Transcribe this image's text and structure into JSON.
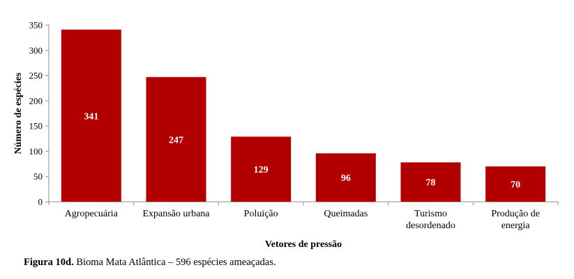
{
  "chart_data": {
    "type": "bar",
    "categories": [
      [
        "Agropecuária"
      ],
      [
        "Expansão urbana"
      ],
      [
        "Poluição"
      ],
      [
        "Queimadas"
      ],
      [
        "Turismo",
        "desordenado"
      ],
      [
        "Produção de",
        "energia"
      ]
    ],
    "values": [
      341,
      247,
      129,
      96,
      78,
      70
    ],
    "data_labels": [
      "341",
      "247",
      "129",
      "96",
      "78",
      "70"
    ],
    "xlabel": "Vetores de pressão",
    "ylabel": "Número de espécies",
    "ylim": [
      0,
      350
    ],
    "yticks": [
      0,
      50,
      100,
      150,
      200,
      250,
      300,
      350
    ],
    "grid": false,
    "legend": "none",
    "bar_color": "#b20000",
    "label_color": "#ffffff"
  },
  "caption": {
    "label": "Figura 10d.",
    "text": " Bioma Mata Atlântica – 596 espécies ameaçadas."
  }
}
